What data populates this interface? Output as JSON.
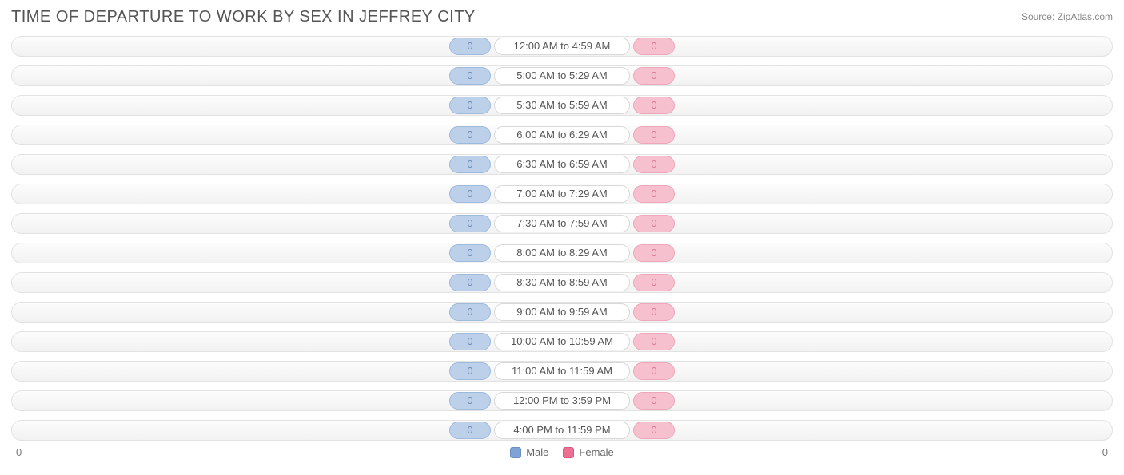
{
  "title": "TIME OF DEPARTURE TO WORK BY SEX IN JEFFREY CITY",
  "source": "Source: ZipAtlas.com",
  "chart": {
    "type": "diverging-bar",
    "background_color": "#ffffff",
    "track_bg_top": "#fcfcfc",
    "track_bg_bottom": "#f2f2f2",
    "track_border": "#e2e2e2",
    "male_fill": "#bcd0ea",
    "male_border": "#9db9dc",
    "male_text": "#6a8bb5",
    "female_fill": "#f6c0cf",
    "female_border": "#eda6ba",
    "female_text": "#d77a95",
    "label_bg": "#ffffff",
    "label_border": "#d8d8d8",
    "label_text": "#555555",
    "axis_left": "0",
    "axis_right": "0",
    "rows": [
      {
        "male": 0,
        "label": "12:00 AM to 4:59 AM",
        "female": 0
      },
      {
        "male": 0,
        "label": "5:00 AM to 5:29 AM",
        "female": 0
      },
      {
        "male": 0,
        "label": "5:30 AM to 5:59 AM",
        "female": 0
      },
      {
        "male": 0,
        "label": "6:00 AM to 6:29 AM",
        "female": 0
      },
      {
        "male": 0,
        "label": "6:30 AM to 6:59 AM",
        "female": 0
      },
      {
        "male": 0,
        "label": "7:00 AM to 7:29 AM",
        "female": 0
      },
      {
        "male": 0,
        "label": "7:30 AM to 7:59 AM",
        "female": 0
      },
      {
        "male": 0,
        "label": "8:00 AM to 8:29 AM",
        "female": 0
      },
      {
        "male": 0,
        "label": "8:30 AM to 8:59 AM",
        "female": 0
      },
      {
        "male": 0,
        "label": "9:00 AM to 9:59 AM",
        "female": 0
      },
      {
        "male": 0,
        "label": "10:00 AM to 10:59 AM",
        "female": 0
      },
      {
        "male": 0,
        "label": "11:00 AM to 11:59 AM",
        "female": 0
      },
      {
        "male": 0,
        "label": "12:00 PM to 3:59 PM",
        "female": 0
      },
      {
        "male": 0,
        "label": "4:00 PM to 11:59 PM",
        "female": 0
      }
    ]
  },
  "legend": {
    "male_label": "Male",
    "female_label": "Female",
    "male_swatch": "#7ea3d4",
    "female_swatch": "#ef6f93"
  }
}
